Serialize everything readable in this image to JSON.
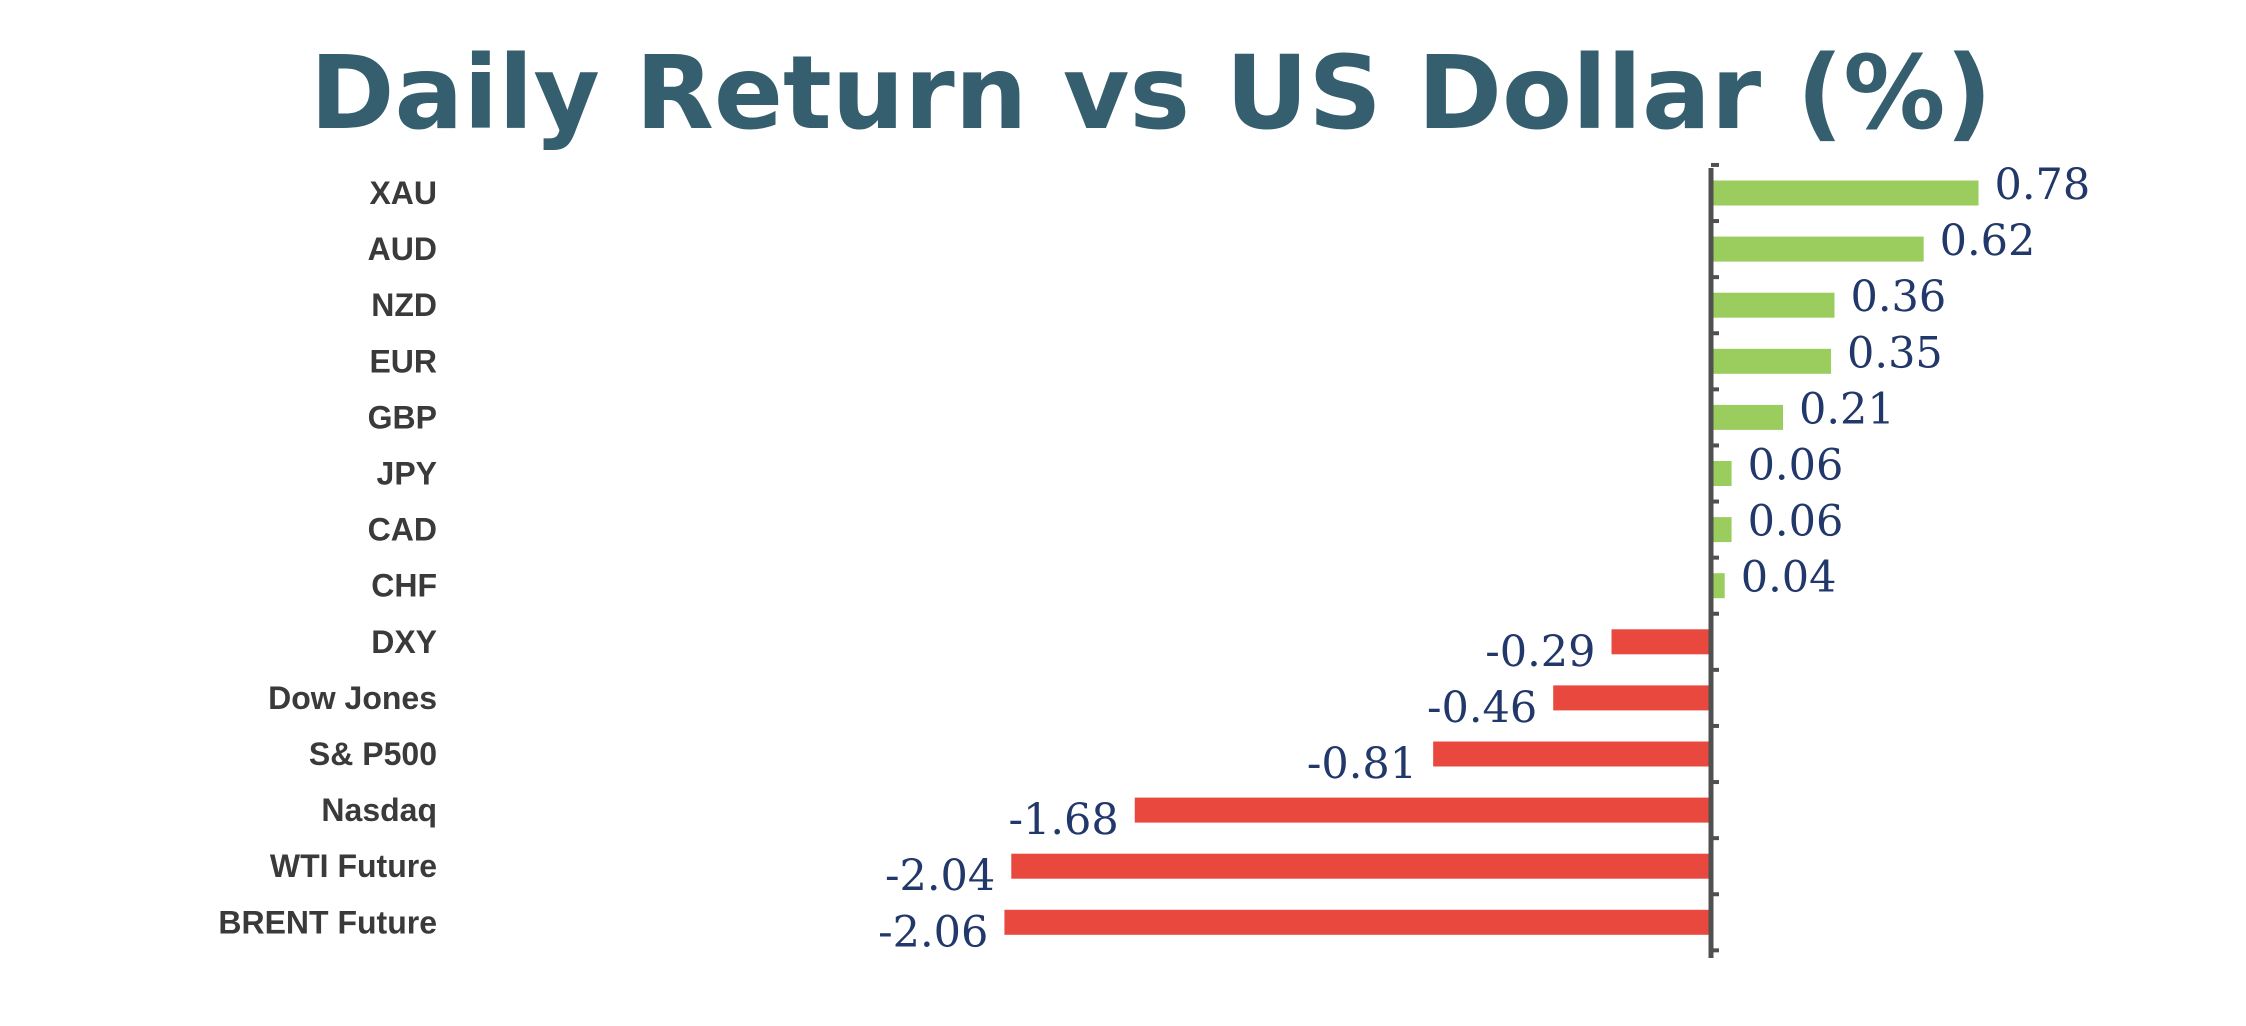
{
  "chart_data": {
    "type": "bar",
    "orientation": "horizontal",
    "title": "Daily Return vs US Dollar (%)",
    "xlabel": "",
    "ylabel": "",
    "grid": false,
    "legend": "none",
    "categories": [
      "XAU",
      "AUD",
      "NZD",
      "EUR",
      "GBP",
      "JPY",
      "CAD",
      "CHF",
      "DXY",
      "Dow Jones",
      "S& P500",
      "Nasdaq",
      "WTI Future",
      "BRENT Future"
    ],
    "values": [
      0.78,
      0.62,
      0.36,
      0.35,
      0.21,
      0.06,
      0.06,
      0.04,
      -0.29,
      -0.46,
      -0.81,
      -1.68,
      -2.04,
      -2.06
    ],
    "value_labels": [
      "0.78",
      "0.62",
      "0.36",
      "0.35",
      "0.21",
      "0.06",
      "0.06",
      "0.04",
      "-0.29",
      "-0.46",
      "-0.81",
      "-1.68",
      "-2.04",
      "-2.06"
    ],
    "colors": {
      "positive": "#9ACD5E",
      "negative": "#E8483E",
      "title": "#355E6E",
      "value_label": "#22386A",
      "category_label": "#3a3a3a",
      "axis": "#505050"
    }
  }
}
